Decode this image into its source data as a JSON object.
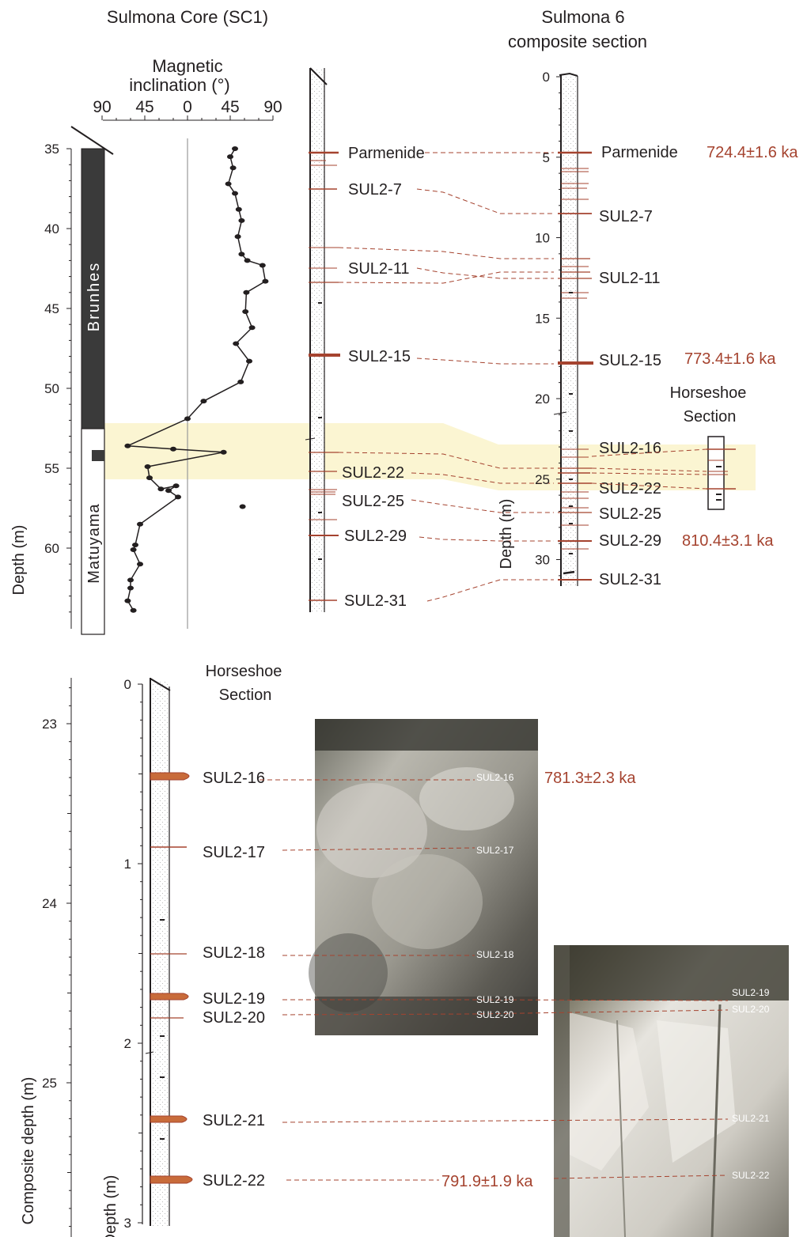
{
  "colors": {
    "ash": "#a5432f",
    "ash_fill": "#c86b3a",
    "highlight": "#fbf5d2",
    "normal_polarity": "#3a3a3a",
    "text": "#231f20"
  },
  "top_left": {
    "title": "Sulmona Core (SC1)",
    "inclination_title_1": "Magnetic",
    "inclination_title_2": "inclination (°)",
    "inclination_ticks": [
      "90",
      "45",
      "0",
      "45",
      "90"
    ],
    "depth_label": "Depth (m)",
    "depth_ticks": [
      "35",
      "40",
      "45",
      "50",
      "55",
      "60"
    ],
    "polarity_upper": "Brunhes",
    "polarity_lower": "Matuyama",
    "tephra": [
      "Parmenide",
      "SUL2-7",
      "SUL2-11",
      "SUL2-15",
      "SUL2-22",
      "SUL2-25",
      "SUL2-29",
      "SUL2-31"
    ]
  },
  "chart_data": {
    "type": "line",
    "xlabel": "Magnetic inclination (°)",
    "ylabel": "Depth (m)",
    "xlim": [
      -90,
      90
    ],
    "ylim": [
      65,
      35
    ],
    "points": [
      [
        50,
        35.0
      ],
      [
        45,
        35.5
      ],
      [
        48,
        36.2
      ],
      [
        43,
        37.2
      ],
      [
        50,
        37.8
      ],
      [
        54,
        38.8
      ],
      [
        57,
        39.5
      ],
      [
        53,
        40.5
      ],
      [
        57,
        41.6
      ],
      [
        63,
        42.0
      ],
      [
        79,
        42.3
      ],
      [
        82,
        43.3
      ],
      [
        62,
        44.0
      ],
      [
        61,
        45.2
      ],
      [
        68,
        46.2
      ],
      [
        51,
        47.2
      ],
      [
        65,
        48.3
      ],
      [
        56,
        49.6
      ],
      [
        17,
        50.8
      ],
      [
        0,
        51.9
      ],
      [
        -63,
        53.6
      ],
      [
        -15,
        53.8
      ],
      [
        38,
        54.0
      ],
      [
        -42,
        54.9
      ],
      [
        -40,
        55.6
      ],
      [
        -28,
        56.3
      ],
      [
        -12,
        56.1
      ],
      [
        -20,
        56.4
      ],
      [
        -10,
        56.8
      ],
      [
        -50,
        58.5
      ],
      [
        -55,
        59.8
      ],
      [
        -57,
        60.1
      ],
      [
        -50,
        61.0
      ],
      [
        -60,
        62.0
      ],
      [
        -60,
        62.5
      ],
      [
        -63,
        63.3
      ],
      [
        -57,
        63.9
      ]
    ],
    "outlier": [
      58,
      57.4
    ]
  },
  "top_right": {
    "title_1": "Sulmona 6",
    "title_2": "composite section",
    "depth_label": "Depth (m)",
    "depth_ticks": [
      "0",
      "5",
      "10",
      "15",
      "20",
      "25",
      "30"
    ],
    "tephra": [
      "Parmenide",
      "SUL2-7",
      "SUL2-11",
      "SUL2-15",
      "SUL2-16",
      "SUL2-22",
      "SUL2-25",
      "SUL2-29",
      "SUL2-31"
    ],
    "ages": {
      "parmenide": "724.4±1.6 ka",
      "sul2_15": "773.4±1.6 ka",
      "sul2_29": "810.4±3.1 ka"
    },
    "inset_title_1": "Horseshoe",
    "inset_title_2": "Section"
  },
  "bottom": {
    "composite_label": "Composite depth (m)",
    "composite_ticks": [
      "23",
      "24",
      "25"
    ],
    "depth_label": "Depth (m)",
    "depth_ticks": [
      "0",
      "1",
      "2",
      "3"
    ],
    "title_1": "Horseshoe",
    "title_2": "Section",
    "tephra": [
      "SUL2-16",
      "SUL2-17",
      "SUL2-18",
      "SUL2-19",
      "SUL2-20",
      "SUL2-21",
      "SUL2-22"
    ],
    "ages": {
      "sul2_16": "781.3±2.3 ka",
      "sul2_22": "791.9±1.9 ka"
    },
    "photo1_labels": [
      "SUL2-16",
      "SUL2-17",
      "SUL2-18",
      "SUL2-19",
      "SUL2-20"
    ],
    "photo2_labels": [
      "SUL2-19",
      "SUL2-20",
      "SUL2-21",
      "SUL2-22"
    ]
  }
}
